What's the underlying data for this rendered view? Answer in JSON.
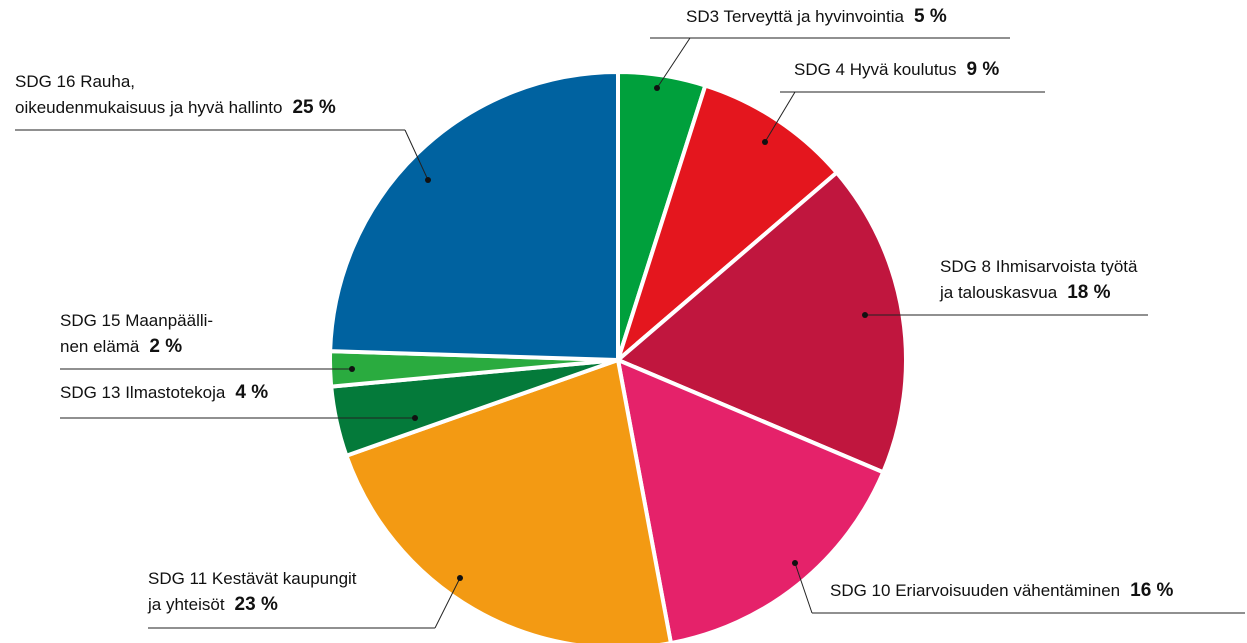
{
  "chart_data": {
    "type": "pie",
    "categories": [
      "SD3 Terveyttä ja hyvinvointia",
      "SDG 4 Hyvä koulutus",
      "SDG 8 Ihmisarvoista työtä\nja talouskasvua",
      "SDG 10 Eriarvoisuuden vähentäminen",
      "SDG 11 Kestävät kaupungit\nja yhteisöt",
      "SDG 13 Ilmastotekoja",
      "SDG 15 Maanpäälli-\nnen elämä",
      "SDG 16 Rauha,\noikeudenmukaisuus ja hyvä hallinto"
    ],
    "values": [
      5,
      9,
      18,
      16,
      23,
      4,
      2,
      25
    ],
    "value_labels": [
      "5 %",
      "9 %",
      "18 %",
      "16 %",
      "23 %",
      "4 %",
      "2 %",
      "25 %"
    ],
    "colors": [
      "#00a03c",
      "#e4161e",
      "#c0163e",
      "#e5226a",
      "#f39a13",
      "#047a3a",
      "#2aab3f",
      "#0062a0"
    ]
  }
}
